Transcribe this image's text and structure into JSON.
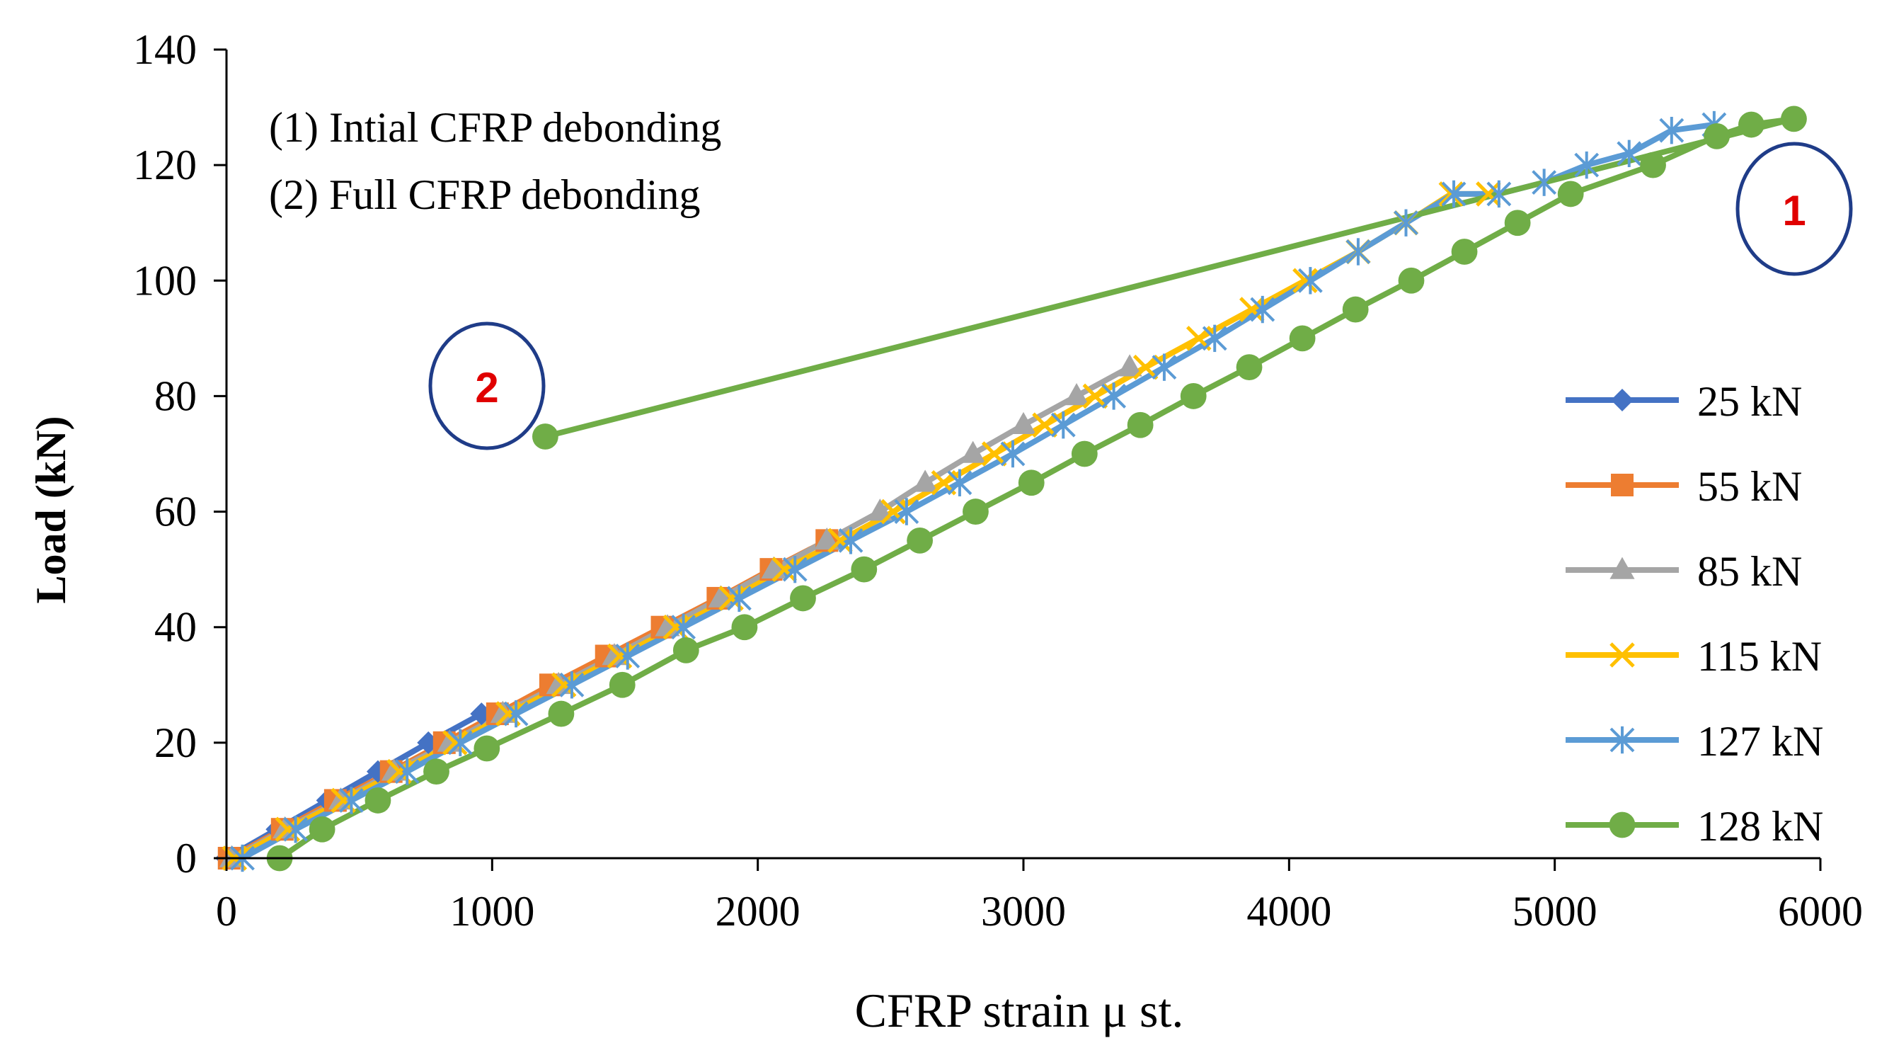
{
  "chart_data": {
    "type": "line",
    "title": "",
    "xlabel": "CFRP strain μ st.",
    "ylabel": "Load   (kN)",
    "xlim": [
      0,
      6000
    ],
    "ylim": [
      0,
      140
    ],
    "xticks": [
      "0",
      "1000",
      "2000",
      "3000",
      "4000",
      "5000",
      "6000"
    ],
    "yticks": [
      "0",
      "20",
      "40",
      "60",
      "80",
      "100",
      "120",
      "140"
    ],
    "grid": false,
    "legend_position": "right",
    "annotations": {
      "note1": "(1) Intial CFRP debonding",
      "note2": "(2) Full CFRP debonding",
      "callout1": "1",
      "callout2": "2"
    },
    "series": [
      {
        "name": "25 kN",
        "color": "#4472C4",
        "marker": "diamond",
        "x": [
          0,
          190,
          380,
          570,
          760,
          960
        ],
        "y": [
          0,
          5,
          10,
          15,
          20,
          25
        ]
      },
      {
        "name": "55 kN",
        "color": "#ED7D31",
        "marker": "square",
        "x": [
          10,
          210,
          410,
          620,
          820,
          1020,
          1220,
          1430,
          1640,
          1850,
          2050,
          2260
        ],
        "y": [
          0,
          5,
          10,
          15,
          20,
          25,
          30,
          35,
          40,
          45,
          50,
          55
        ]
      },
      {
        "name": "85 kN",
        "color": "#A5A5A5",
        "marker": "triangle",
        "x": [
          20,
          220,
          430,
          630,
          840,
          1040,
          1250,
          1460,
          1660,
          1860,
          2060,
          2260,
          2460,
          2630,
          2810,
          3000,
          3200,
          3400
        ],
        "y": [
          0,
          5,
          10,
          15,
          20,
          25,
          30,
          35,
          40,
          45,
          50,
          55,
          60,
          65,
          70,
          75,
          80,
          85
        ]
      },
      {
        "name": "115 kN",
        "color": "#FFC000",
        "marker": "x",
        "x": [
          30,
          230,
          440,
          650,
          860,
          1060,
          1270,
          1480,
          1690,
          1900,
          2100,
          2310,
          2510,
          2700,
          2890,
          3080,
          3270,
          3460,
          3660,
          3860,
          4060,
          4260,
          4440,
          4610,
          4750
        ],
        "y": [
          0,
          5,
          10,
          15,
          20,
          25,
          30,
          35,
          40,
          45,
          50,
          55,
          60,
          65,
          70,
          75,
          80,
          85,
          90,
          95,
          100,
          105,
          110,
          115,
          115
        ]
      },
      {
        "name": "127 kN",
        "color": "#5B9BD5",
        "marker": "star",
        "x": [
          60,
          260,
          470,
          680,
          880,
          1090,
          1300,
          1510,
          1720,
          1930,
          2140,
          2350,
          2560,
          2760,
          2960,
          3150,
          3340,
          3530,
          3720,
          3900,
          4080,
          4260,
          4440,
          4620,
          4790,
          4960,
          5120,
          5280,
          5440,
          5600
        ],
        "y": [
          0,
          5,
          10,
          15,
          20,
          25,
          30,
          35,
          40,
          45,
          50,
          55,
          60,
          65,
          70,
          75,
          80,
          85,
          90,
          95,
          100,
          105,
          110,
          115,
          115,
          117,
          120,
          122,
          126,
          127
        ]
      },
      {
        "name": "128 kN",
        "color": "#70AD47",
        "marker": "circle",
        "x": [
          200,
          360,
          570,
          790,
          980,
          1260,
          1490,
          1730,
          1950,
          2170,
          2400,
          2610,
          2820,
          3030,
          3230,
          3440,
          3640,
          3850,
          4050,
          4250,
          4460,
          4660,
          4860,
          5060,
          5370,
          5610,
          5740,
          5900,
          1200
        ],
        "y": [
          0,
          5,
          10,
          15,
          19,
          25,
          30,
          36,
          40,
          45,
          50,
          55,
          60,
          65,
          70,
          75,
          80,
          85,
          90,
          95,
          100,
          105,
          110,
          115,
          120,
          125,
          127,
          128,
          73
        ]
      }
    ]
  }
}
